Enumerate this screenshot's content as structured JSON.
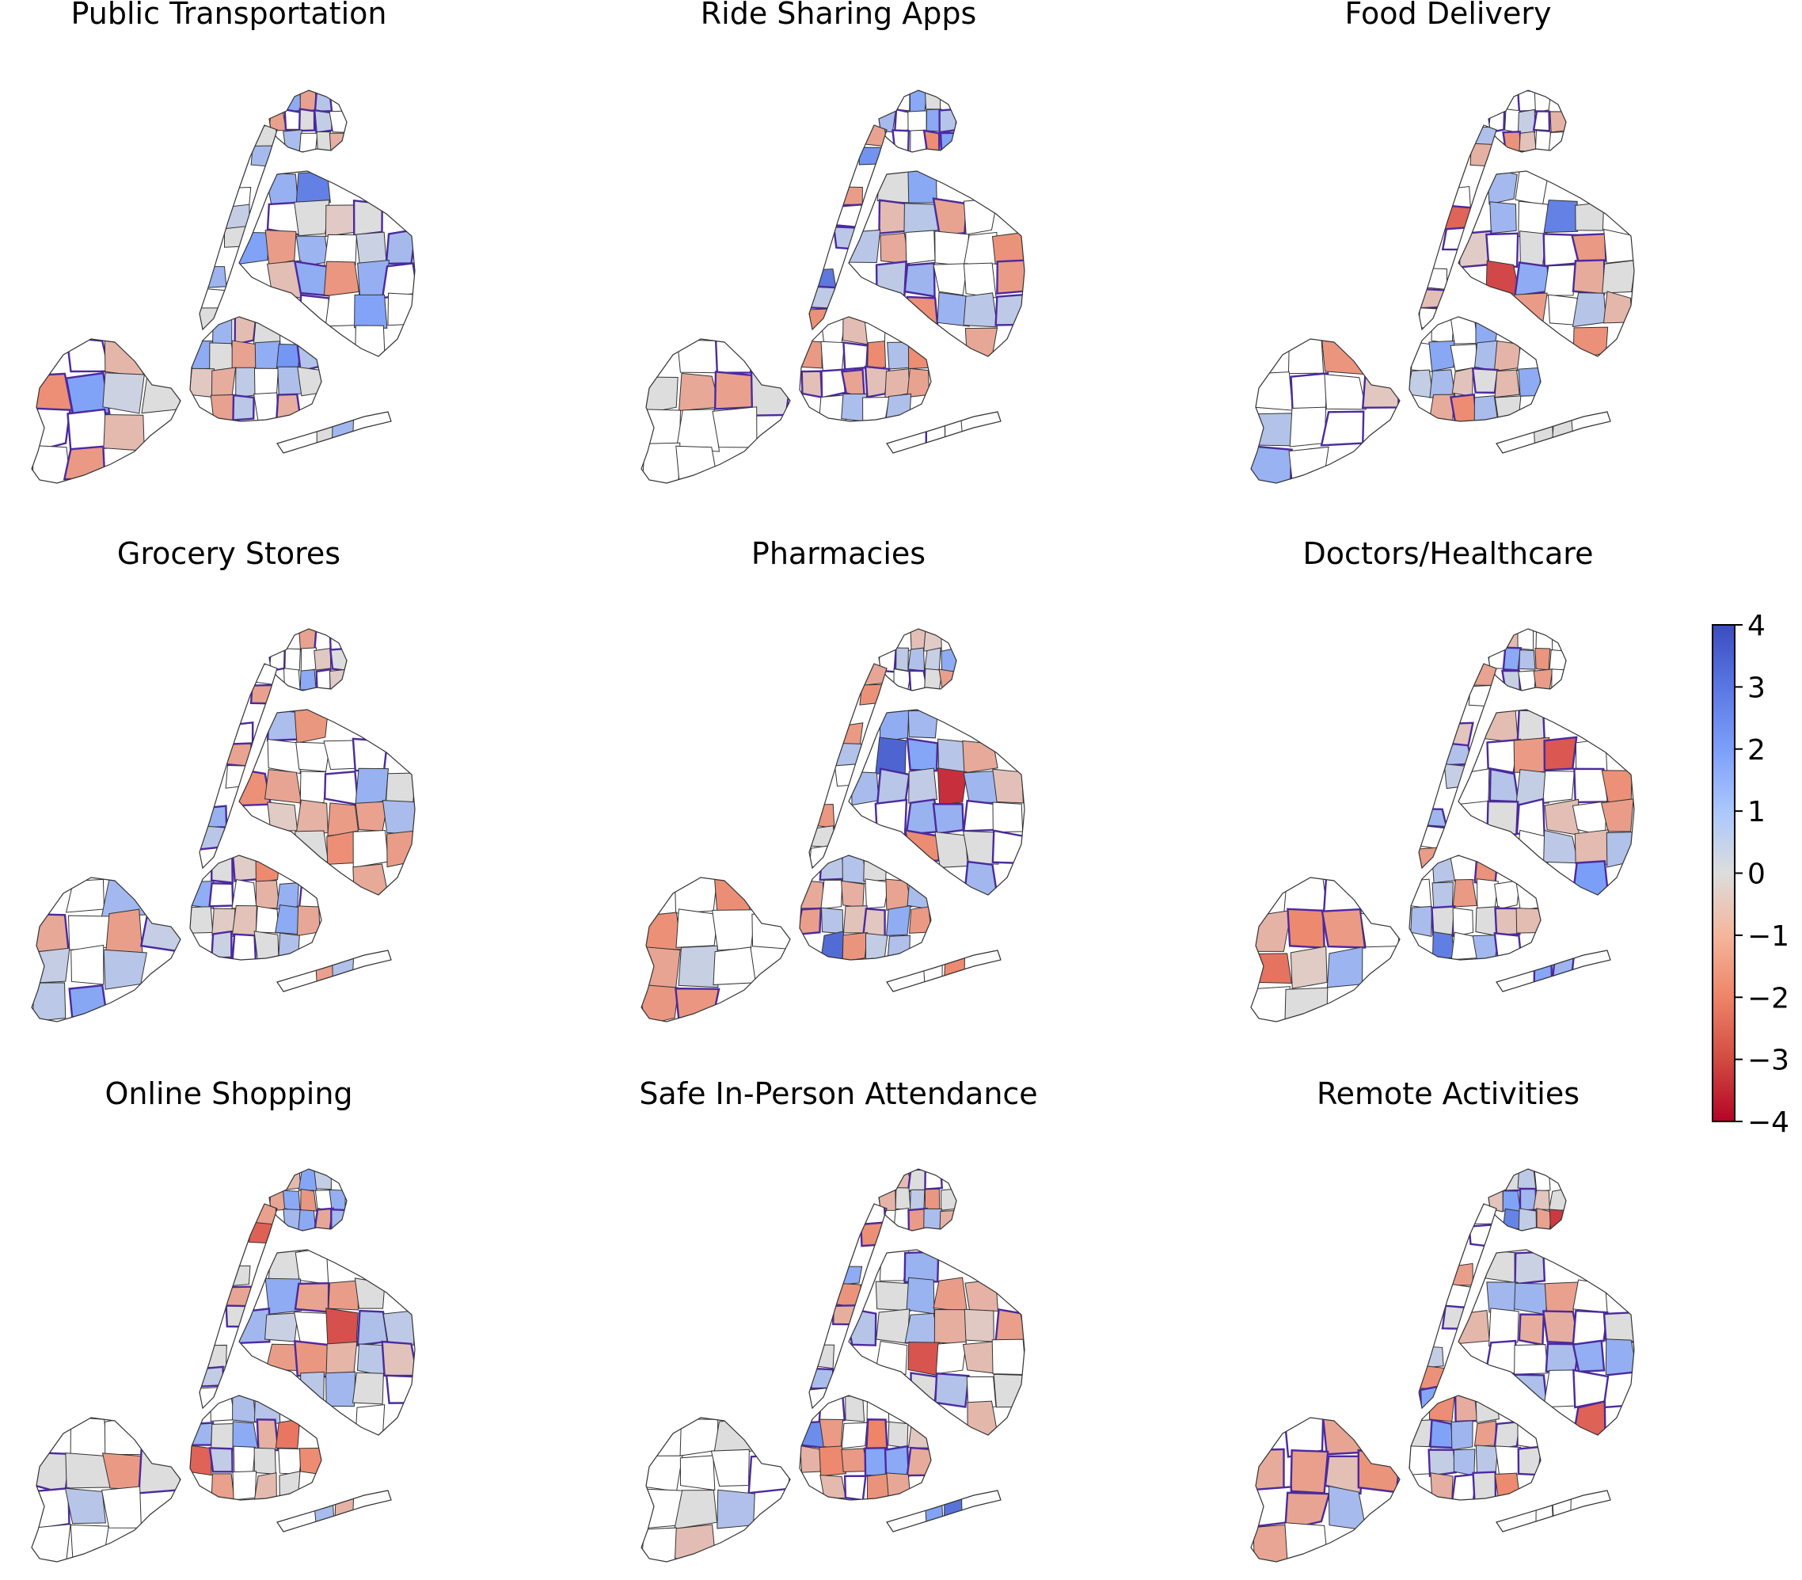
{
  "figure": {
    "colormap": {
      "name": "coolwarm_r",
      "low_color": "#b40426",
      "mid_color": "#dddddd",
      "high_color": "#3b4cc0",
      "missing_color": "#ffffff",
      "highlight_border_color": "#4b2a9e",
      "border_color": "#333333"
    },
    "colorbar": {
      "vmin": -4,
      "vmax": 4,
      "ticks": [
        4,
        3,
        2,
        1,
        0,
        -1,
        -2,
        -3,
        -4
      ],
      "tick_labels": [
        "4",
        "3",
        "2",
        "1",
        "0",
        "−1",
        "−2",
        "−3",
        "−4"
      ]
    },
    "panels": [
      {
        "title": "Public Transportation",
        "seed": 11
      },
      {
        "title": "Ride Sharing Apps",
        "seed": 23
      },
      {
        "title": "Food Delivery",
        "seed": 37
      },
      {
        "title": "Grocery Stores",
        "seed": 41
      },
      {
        "title": "Pharmacies",
        "seed": 53
      },
      {
        "title": "Doctors/Healthcare",
        "seed": 67
      },
      {
        "title": "Online Shopping",
        "seed": 71
      },
      {
        "title": "Safe In-Person Attendance",
        "seed": 83
      },
      {
        "title": "Remote Activities",
        "seed": 97
      }
    ]
  }
}
